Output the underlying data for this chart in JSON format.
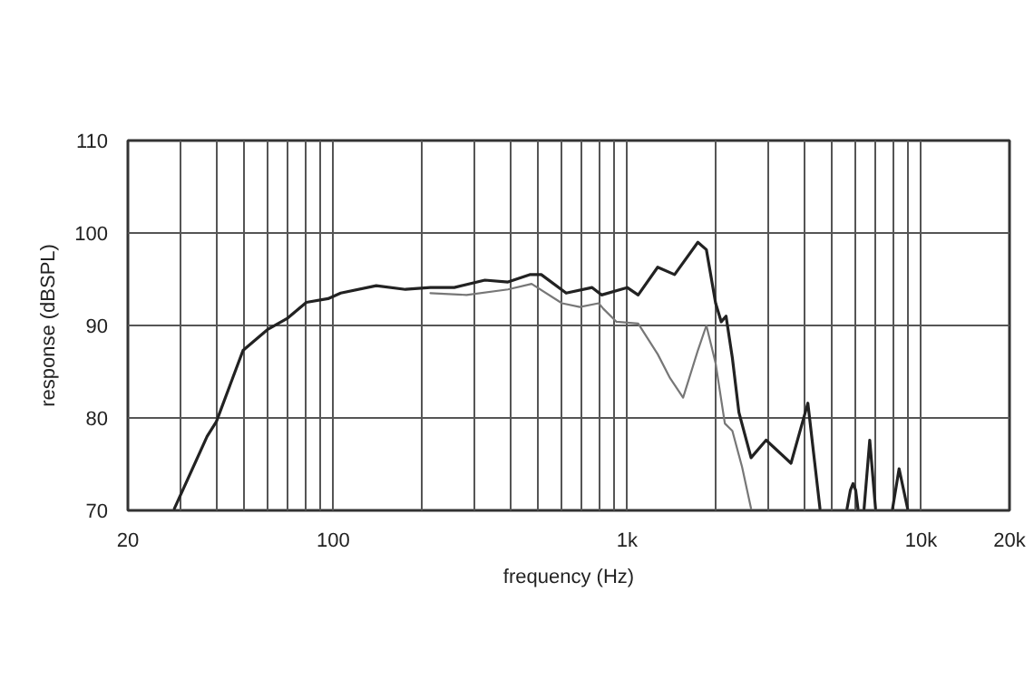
{
  "chart_data": {
    "type": "line",
    "xlabel": "frequency (Hz)",
    "ylabel": "response (dBSPL)",
    "log": "x",
    "grid": true,
    "marker": "none",
    "line_style": "solid",
    "xlim": [
      20,
      20000
    ],
    "ylim": [
      70,
      110
    ],
    "xticks": [
      20,
      {
        "value": 30,
        "label": null
      },
      {
        "value": 40,
        "label": null
      },
      {
        "value": 50,
        "label": null
      },
      {
        "value": 60,
        "label": null
      },
      {
        "value": 70,
        "label": null
      },
      {
        "value": 80,
        "label": null
      },
      {
        "value": 90,
        "label": null
      },
      100,
      {
        "value": 200,
        "label": null
      },
      {
        "value": 300,
        "label": null
      },
      {
        "value": 400,
        "label": null
      },
      {
        "value": 500,
        "label": null
      },
      {
        "value": 600,
        "label": null
      },
      {
        "value": 700,
        "label": null
      },
      {
        "value": 800,
        "label": null
      },
      {
        "value": 900,
        "label": null
      },
      {
        "value": 1000,
        "label": "1k"
      },
      {
        "value": 2000,
        "label": null
      },
      {
        "value": 3000,
        "label": null
      },
      {
        "value": 4000,
        "label": null
      },
      {
        "value": 5000,
        "label": null
      },
      {
        "value": 6000,
        "label": null
      },
      {
        "value": 7000,
        "label": null
      },
      {
        "value": 8000,
        "label": null
      },
      {
        "value": 9000,
        "label": null
      },
      {
        "value": 10000,
        "label": "10k"
      },
      {
        "value": 20000,
        "label": "20k"
      }
    ],
    "yticks": [
      70,
      80,
      90,
      100,
      110
    ],
    "series": [
      {
        "color": "#222222",
        "x": [
          28.8,
          37.2,
          40,
          49.3,
          60,
          70,
          81,
          96,
          106,
          140,
          176,
          214,
          258,
          328,
          393,
          466,
          510,
          620,
          760,
          818,
          1000,
          1090,
          1270,
          1450,
          1740,
          1860,
          2000,
          2090,
          2170,
          2280,
          2400,
          2640,
          2970,
          3610,
          4120,
          4530,
          5000,
          5600,
          5750,
          5870,
          5990,
          6100,
          6250,
          6400,
          6690,
          7000,
          7500,
          8000,
          8420,
          9000
        ],
        "values": [
          70.2,
          78.0,
          79.6,
          87.3,
          89.6,
          90.8,
          92.5,
          92.9,
          93.5,
          94.3,
          93.9,
          94.1,
          94.1,
          94.9,
          94.7,
          95.5,
          95.5,
          93.5,
          94.1,
          93.3,
          94.1,
          93.3,
          96.3,
          95.5,
          99.0,
          98.2,
          92.4,
          90.4,
          91.0,
          86.5,
          80.6,
          75.7,
          77.6,
          75.1,
          81.6,
          70.2,
          null,
          70.2,
          72.2,
          72.9,
          72.2,
          70.2,
          null,
          70.2,
          77.6,
          70.2,
          null,
          70.2,
          74.5,
          70.2
        ]
      },
      {
        "color": "#777777",
        "x": [
          214,
          284,
          393,
          473,
          600,
          690,
          800,
          830,
          920,
          1090,
          1270,
          1400,
          1550,
          1740,
          1860,
          2000,
          2150,
          2280,
          2460,
          2640
        ],
        "values": [
          93.5,
          93.3,
          93.9,
          94.5,
          92.4,
          92.0,
          92.4,
          91.8,
          90.4,
          90.2,
          86.9,
          84.3,
          82.2,
          87.3,
          90.0,
          85.9,
          79.4,
          78.6,
          74.7,
          70.2
        ]
      }
    ]
  }
}
